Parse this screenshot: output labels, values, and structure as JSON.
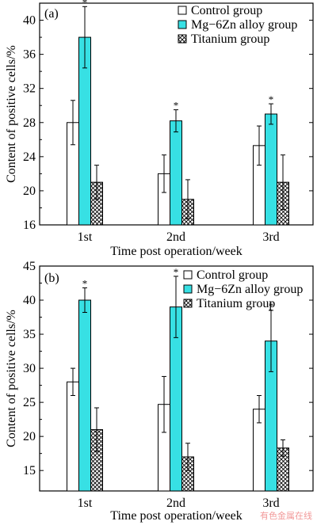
{
  "watermark": "有色金属在线",
  "chart_data": [
    {
      "panel": "(a)",
      "type": "bar",
      "categories": [
        "1st",
        "2nd",
        "3rd"
      ],
      "xlabel": "Time post operation/week",
      "ylabel": "Content of positive cells/%",
      "ylim": [
        16,
        42
      ],
      "yticks": [
        16,
        20,
        24,
        28,
        32,
        36,
        40
      ],
      "legend_position": "top-right",
      "series": [
        {
          "name": "Control group",
          "color": "#ffffff",
          "pattern": "none",
          "values": [
            28.0,
            22.0,
            25.3
          ],
          "errors": [
            2.6,
            2.2,
            2.3
          ],
          "significance": [
            "",
            "",
            ""
          ]
        },
        {
          "name": "Mg−6Zn alloy group",
          "color": "#37e0e4",
          "pattern": "none",
          "values": [
            38.0,
            28.2,
            29.0
          ],
          "errors": [
            3.6,
            1.3,
            1.2
          ],
          "significance": [
            "*",
            "*",
            "*"
          ]
        },
        {
          "name": "Titanium group",
          "color": "#ffffff",
          "pattern": "crosshatch",
          "values": [
            21.0,
            19.0,
            21.0
          ],
          "errors": [
            2.0,
            2.3,
            3.2
          ],
          "significance": [
            "",
            "",
            ""
          ]
        }
      ]
    },
    {
      "panel": "(b)",
      "type": "bar",
      "categories": [
        "1st",
        "2nd",
        "3rd"
      ],
      "xlabel": "Time post operation/week",
      "ylabel": "Content of positive cells/%",
      "ylim": [
        12,
        45
      ],
      "yticks": [
        15,
        20,
        25,
        30,
        35,
        40,
        45
      ],
      "legend_position": "top-right",
      "series": [
        {
          "name": "Control group",
          "color": "#ffffff",
          "pattern": "none",
          "values": [
            28.0,
            24.7,
            24.0
          ],
          "errors": [
            2.0,
            4.1,
            2.0
          ],
          "significance": [
            "",
            "",
            ""
          ]
        },
        {
          "name": "Mg−6Zn alloy group",
          "color": "#37e0e4",
          "pattern": "none",
          "values": [
            40.0,
            39.0,
            34.0
          ],
          "errors": [
            1.8,
            4.5,
            4.5
          ],
          "significance": [
            "*",
            "*",
            "*"
          ]
        },
        {
          "name": "Titanium group",
          "color": "#ffffff",
          "pattern": "crosshatch",
          "values": [
            21.0,
            17.0,
            18.3
          ],
          "errors": [
            3.2,
            2.0,
            1.2
          ],
          "significance": [
            "",
            "",
            ""
          ]
        }
      ]
    }
  ]
}
